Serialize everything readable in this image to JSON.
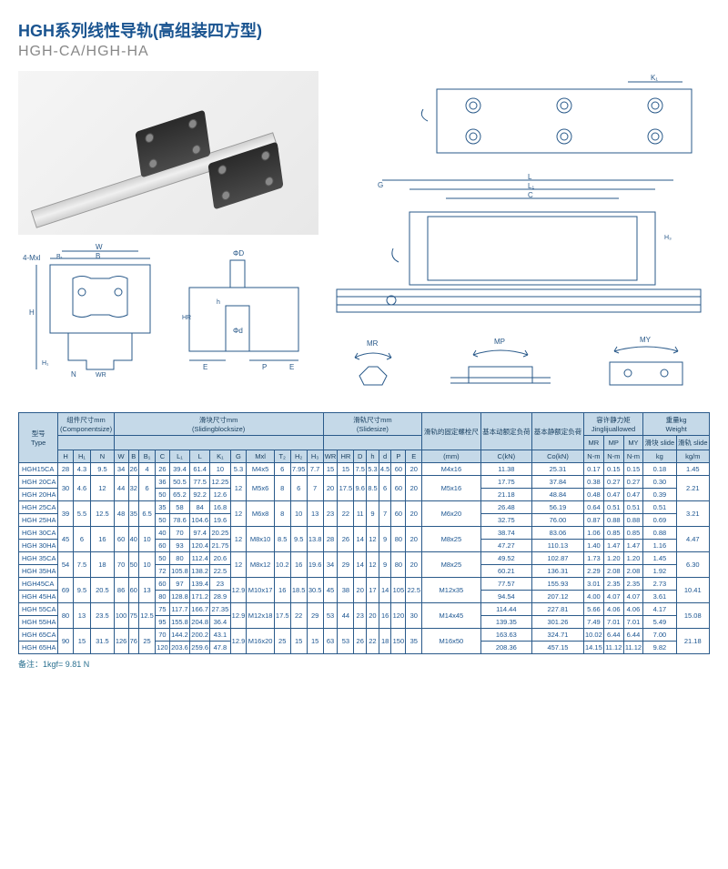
{
  "titles": {
    "cn": "HGH系列线性导轨(高组装四方型)",
    "en": "HGH-CA/HGH-HA"
  },
  "footnote": "备注：1kgf= 9.81 N",
  "diagram_labels": {
    "cross": [
      "4-Mxl",
      "W",
      "B₁",
      "B",
      "H",
      "H₁",
      "N",
      "WR"
    ],
    "side": [
      "ΦD",
      "HR",
      "Φd",
      "h",
      "E",
      "P",
      "E"
    ],
    "top": [
      "K₁",
      "G",
      "L",
      "L₁",
      "C",
      "H₃"
    ],
    "moments": [
      "MR",
      "MP",
      "MY"
    ]
  },
  "table": {
    "header_groups": [
      {
        "label_cn": "型号",
        "label_en": "Type",
        "rowspan": 3,
        "colspan": 1
      },
      {
        "label_cn": "组件尺寸mm",
        "label_en": "(Componentsize)",
        "rowspan": 1,
        "colspan": 3
      },
      {
        "label_cn": "滑块尺寸mm",
        "label_en": "(Slidingblocksize)",
        "rowspan": 1,
        "colspan": 12
      },
      {
        "label_cn": "滑轨尺寸mm",
        "label_en": "(Slidesize)",
        "rowspan": 1,
        "colspan": 7
      },
      {
        "label_cn": "滑轨的固定螺栓尺",
        "label_en": "",
        "rowspan": 2,
        "colspan": 1
      },
      {
        "label_cn": "基本动额定负荷",
        "label_en": "",
        "rowspan": 2,
        "colspan": 1
      },
      {
        "label_cn": "基本静额定负荷",
        "label_en": "",
        "rowspan": 2,
        "colspan": 1
      },
      {
        "label_cn": "容许静力矩",
        "label_en": "Jinglijuallowed",
        "rowspan": 1,
        "colspan": 3
      },
      {
        "label_cn": "重量kg",
        "label_en": "Weight",
        "rowspan": 1,
        "colspan": 2
      }
    ],
    "sub_headers": [
      "MR",
      "MP",
      "MY",
      "滑块 slide",
      "滑轨 slide"
    ],
    "col_units": [
      "H",
      "H₁",
      "N",
      "W",
      "B",
      "B₁",
      "C",
      "L₁",
      "L",
      "K₁",
      "G",
      "Mxl",
      "T₂",
      "H₂",
      "H₃",
      "WR",
      "HR",
      "D",
      "h",
      "d",
      "P",
      "E",
      "(mm)",
      "C(kN)",
      "Co(kN)",
      "N-m",
      "N-m",
      "N-m",
      "kg",
      "kg/m"
    ],
    "rows": [
      {
        "type": "HGH15CA",
        "H": "28",
        "H1": "4.3",
        "N": "9.5",
        "W": "34",
        "B": "26",
        "B1": "4",
        "C": "26",
        "L1": "39.4",
        "L": "61.4",
        "K1": "10",
        "G": "5.3",
        "Mxl": "M4x5",
        "T2": "6",
        "H2": "7.95",
        "H3": "7.7",
        "WR": "15",
        "HR": "15",
        "D": "7.5",
        "h": "5.3",
        "d": "4.5",
        "P": "60",
        "E": "20",
        "mm": "M4x16",
        "CkN": "11.38",
        "CokN": "25.31",
        "MR": "0.17",
        "MP": "0.15",
        "MY": "0.15",
        "kg": "0.18",
        "kgm": "1.45"
      },
      {
        "type": "HGH 20CA",
        "H": "30",
        "H1": "4.6",
        "N": "12",
        "W": "44",
        "B": "32",
        "B1": "6",
        "C": "36",
        "L1": "50.5",
        "L": "77.5",
        "K1": "12.25",
        "G": "12",
        "Mxl": "M5x6",
        "T2": "8",
        "H2": "6",
        "H3": "7",
        "WR": "20",
        "HR": "17.5",
        "D": "9.6",
        "h": "8.5",
        "d": "6",
        "P": "60",
        "E": "20",
        "mm": "M5x16",
        "CkN": "17.75",
        "CokN": "37.84",
        "MR": "0.38",
        "MP": "0.27",
        "MY": "0.27",
        "kg": "0.30",
        "kgm": "2.21"
      },
      {
        "type": "HGH 20HA",
        "H": "",
        "H1": "",
        "N": "",
        "W": "",
        "B": "",
        "B1": "",
        "C": "50",
        "L1": "65.2",
        "L": "92.2",
        "K1": "12.6",
        "G": "",
        "Mxl": "",
        "T2": "",
        "H2": "",
        "H3": "",
        "WR": "",
        "HR": "",
        "D": "",
        "h": "",
        "d": "",
        "P": "",
        "E": "",
        "mm": "",
        "CkN": "21.18",
        "CokN": "48.84",
        "MR": "0.48",
        "MP": "0.47",
        "MY": "0.47",
        "kg": "0.39",
        "kgm": ""
      },
      {
        "type": "HGH 25CA",
        "H": "39",
        "H1": "5.5",
        "N": "12.5",
        "W": "48",
        "B": "35",
        "B1": "6.5",
        "C": "35",
        "L1": "58",
        "L": "84",
        "K1": "16.8",
        "G": "12",
        "Mxl": "M6x8",
        "T2": "8",
        "H2": "10",
        "H3": "13",
        "WR": "23",
        "HR": "22",
        "D": "11",
        "h": "9",
        "d": "7",
        "P": "60",
        "E": "20",
        "mm": "M6x20",
        "CkN": "26.48",
        "CokN": "56.19",
        "MR": "0.64",
        "MP": "0.51",
        "MY": "0.51",
        "kg": "0.51",
        "kgm": "3.21"
      },
      {
        "type": "HGH 25HA",
        "H": "",
        "H1": "",
        "N": "",
        "W": "",
        "B": "",
        "B1": "",
        "C": "50",
        "L1": "78.6",
        "L": "104.6",
        "K1": "19.6",
        "G": "",
        "Mxl": "",
        "T2": "",
        "H2": "",
        "H3": "",
        "WR": "",
        "HR": "",
        "D": "",
        "h": "",
        "d": "",
        "P": "",
        "E": "",
        "mm": "",
        "CkN": "32.75",
        "CokN": "76.00",
        "MR": "0.87",
        "MP": "0.88",
        "MY": "0.88",
        "kg": "0.69",
        "kgm": ""
      },
      {
        "type": "HGH 30CA",
        "H": "45",
        "H1": "6",
        "N": "16",
        "W": "60",
        "B": "40",
        "B1": "10",
        "C": "40",
        "L1": "70",
        "L": "97.4",
        "K1": "20.25",
        "G": "12",
        "Mxl": "M8x10",
        "T2": "8.5",
        "H2": "9.5",
        "H3": "13.8",
        "WR": "28",
        "HR": "26",
        "D": "14",
        "h": "12",
        "d": "9",
        "P": "80",
        "E": "20",
        "mm": "M8x25",
        "CkN": "38.74",
        "CokN": "83.06",
        "MR": "1.06",
        "MP": "0.85",
        "MY": "0.85",
        "kg": "0.88",
        "kgm": "4.47"
      },
      {
        "type": "HGH 30HA",
        "H": "",
        "H1": "",
        "N": "",
        "W": "",
        "B": "",
        "B1": "",
        "C": "60",
        "L1": "93",
        "L": "120.4",
        "K1": "21.75",
        "G": "",
        "Mxl": "",
        "T2": "",
        "H2": "",
        "H3": "",
        "WR": "",
        "HR": "",
        "D": "",
        "h": "",
        "d": "",
        "P": "",
        "E": "",
        "mm": "",
        "CkN": "47.27",
        "CokN": "110.13",
        "MR": "1.40",
        "MP": "1.47",
        "MY": "1.47",
        "kg": "1.16",
        "kgm": ""
      },
      {
        "type": "HGH 35CA",
        "H": "54",
        "H1": "7.5",
        "N": "18",
        "W": "70",
        "B": "50",
        "B1": "10",
        "C": "50",
        "L1": "80",
        "L": "112.4",
        "K1": "20.6",
        "G": "12",
        "Mxl": "M8x12",
        "T2": "10.2",
        "H2": "16",
        "H3": "19.6",
        "WR": "34",
        "HR": "29",
        "D": "14",
        "h": "12",
        "d": "9",
        "P": "80",
        "E": "20",
        "mm": "M8x25",
        "CkN": "49.52",
        "CokN": "102.87",
        "MR": "1.73",
        "MP": "1.20",
        "MY": "1.20",
        "kg": "1.45",
        "kgm": "6.30"
      },
      {
        "type": "HGH 35HA",
        "H": "",
        "H1": "",
        "N": "",
        "W": "",
        "B": "",
        "B1": "",
        "C": "72",
        "L1": "105.8",
        "L": "138.2",
        "K1": "22.5",
        "G": "",
        "Mxl": "",
        "T2": "",
        "H2": "",
        "H3": "",
        "WR": "",
        "HR": "",
        "D": "",
        "h": "",
        "d": "",
        "P": "",
        "E": "",
        "mm": "",
        "CkN": "60.21",
        "CokN": "136.31",
        "MR": "2.29",
        "MP": "2.08",
        "MY": "2.08",
        "kg": "1.92",
        "kgm": ""
      },
      {
        "type": "HGH45CA",
        "H": "69",
        "H1": "9.5",
        "N": "20.5",
        "W": "86",
        "B": "60",
        "B1": "13",
        "C": "60",
        "L1": "97",
        "L": "139.4",
        "K1": "23",
        "G": "12.9",
        "Mxl": "M10x17",
        "T2": "16",
        "H2": "18.5",
        "H3": "30.5",
        "WR": "45",
        "HR": "38",
        "D": "20",
        "h": "17",
        "d": "14",
        "P": "105",
        "E": "22.5",
        "mm": "M12x35",
        "CkN": "77.57",
        "CokN": "155.93",
        "MR": "3.01",
        "MP": "2.35",
        "MY": "2.35",
        "kg": "2.73",
        "kgm": "10.41"
      },
      {
        "type": "HGH 45HA",
        "H": "",
        "H1": "",
        "N": "",
        "W": "",
        "B": "",
        "B1": "",
        "C": "80",
        "L1": "128.8",
        "L": "171.2",
        "K1": "28.9",
        "G": "",
        "Mxl": "",
        "T2": "",
        "H2": "",
        "H3": "",
        "WR": "",
        "HR": "",
        "D": "",
        "h": "",
        "d": "",
        "P": "",
        "E": "",
        "mm": "",
        "CkN": "94.54",
        "CokN": "207.12",
        "MR": "4.00",
        "MP": "4.07",
        "MY": "4.07",
        "kg": "3.61",
        "kgm": ""
      },
      {
        "type": "HGH 55CA",
        "H": "80",
        "H1": "13",
        "N": "23.5",
        "W": "100",
        "B": "75",
        "B1": "12.5",
        "C": "75",
        "L1": "117.7",
        "L": "166.7",
        "K1": "27.35",
        "G": "12.9",
        "Mxl": "M12x18",
        "T2": "17.5",
        "H2": "22",
        "H3": "29",
        "WR": "53",
        "HR": "44",
        "D": "23",
        "h": "20",
        "d": "16",
        "P": "120",
        "E": "30",
        "mm": "M14x45",
        "CkN": "114.44",
        "CokN": "227.81",
        "MR": "5.66",
        "MP": "4.06",
        "MY": "4.06",
        "kg": "4.17",
        "kgm": "15.08"
      },
      {
        "type": "HGH 55HA",
        "H": "",
        "H1": "",
        "N": "",
        "W": "",
        "B": "",
        "B1": "",
        "C": "95",
        "L1": "155.8",
        "L": "204.8",
        "K1": "36.4",
        "G": "",
        "Mxl": "",
        "T2": "",
        "H2": "",
        "H3": "",
        "WR": "",
        "HR": "",
        "D": "",
        "h": "",
        "d": "",
        "P": "",
        "E": "",
        "mm": "",
        "CkN": "139.35",
        "CokN": "301.26",
        "MR": "7.49",
        "MP": "7.01",
        "MY": "7.01",
        "kg": "5.49",
        "kgm": ""
      },
      {
        "type": "HGH 65CA",
        "H": "90",
        "H1": "15",
        "N": "31.5",
        "W": "126",
        "B": "76",
        "B1": "25",
        "C": "70",
        "L1": "144.2",
        "L": "200.2",
        "K1": "43.1",
        "G": "12.9",
        "Mxl": "M16x20",
        "T2": "25",
        "H2": "15",
        "H3": "15",
        "WR": "63",
        "HR": "53",
        "D": "26",
        "h": "22",
        "d": "18",
        "P": "150",
        "E": "35",
        "mm": "M16x50",
        "CkN": "163.63",
        "CokN": "324.71",
        "MR": "10.02",
        "MP": "6.44",
        "MY": "6.44",
        "kg": "7.00",
        "kgm": "21.18"
      },
      {
        "type": "HGH 65HA",
        "H": "",
        "H1": "",
        "N": "",
        "W": "",
        "B": "",
        "B1": "",
        "C": "120",
        "L1": "203.6",
        "L": "259.6",
        "K1": "47.8",
        "G": "",
        "Mxl": "",
        "T2": "",
        "H2": "",
        "H3": "",
        "WR": "",
        "HR": "",
        "D": "",
        "h": "",
        "d": "",
        "P": "",
        "E": "",
        "mm": "",
        "CkN": "208.36",
        "CokN": "457.15",
        "MR": "14.15",
        "MP": "11.12",
        "MY": "11.12",
        "kg": "9.82",
        "kgm": ""
      }
    ]
  },
  "colors": {
    "primary": "#1a5490",
    "header_bg": "#c5d9e8",
    "border": "#2a5a8a",
    "text_muted": "#888"
  }
}
